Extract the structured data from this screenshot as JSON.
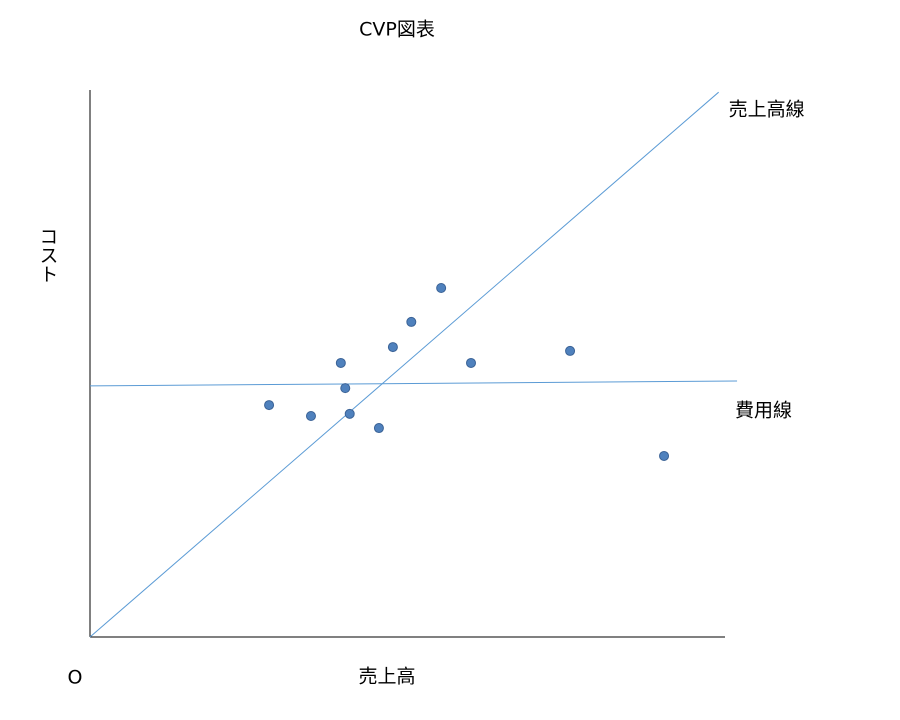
{
  "chart_data": {
    "type": "scatter",
    "title": "CVP図表",
    "x_label": "売上高",
    "y_label": "コスト",
    "origin_label": "O",
    "xlim": [
      0,
      100
    ],
    "ylim": [
      0,
      100
    ],
    "series": [
      {
        "name": "売上高線",
        "type": "line",
        "color": "#5b9bd5",
        "x": [
          0,
          99
        ],
        "values": [
          0,
          99.6
        ]
      },
      {
        "name": "費用線",
        "type": "line",
        "color": "#5b9bd5",
        "x": [
          0,
          101.9
        ],
        "values": [
          45.9,
          46.8
        ]
      },
      {
        "type": "scatter",
        "color": "#4f81bd",
        "x": [
          28.2,
          34.8,
          39.5,
          40.2,
          40.9,
          45.5,
          47.7,
          50.6,
          55.3,
          60.0,
          75.6,
          90.4
        ],
        "values": [
          42.4,
          40.4,
          50.1,
          45.5,
          40.8,
          38.2,
          53.0,
          57.6,
          63.8,
          50.1,
          52.3,
          33.1
        ]
      }
    ]
  }
}
